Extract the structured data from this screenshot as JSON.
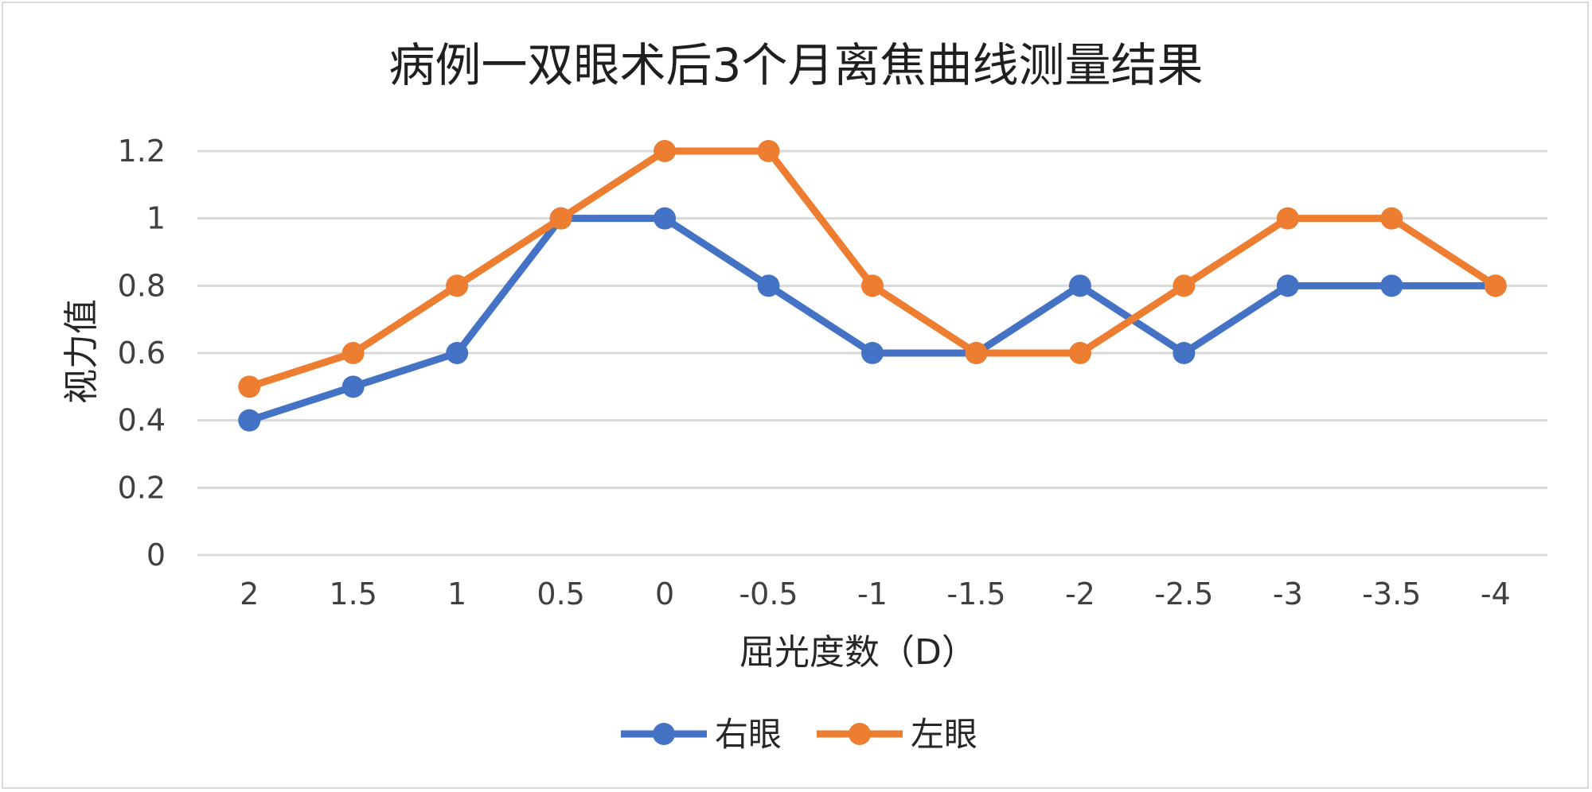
{
  "chart_data": {
    "type": "line",
    "title": "病例一双眼术后3个月离焦曲线测量结果",
    "xlabel": "屈光度数（D）",
    "ylabel": "视力值",
    "categories": [
      "2",
      "1.5",
      "1",
      "0.5",
      "0",
      "-0.5",
      "-1",
      "-1.5",
      "-2",
      "-2.5",
      "-3",
      "-3.5",
      "-4"
    ],
    "y_ticks": [
      "0",
      "0.2",
      "0.4",
      "0.6",
      "0.8",
      "1",
      "1.2"
    ],
    "ylim": [
      0,
      1.2
    ],
    "grid": true,
    "legend_position": "bottom",
    "series": [
      {
        "name": "右眼",
        "color": "#4472C4",
        "values": [
          0.4,
          0.5,
          0.6,
          1.0,
          1.0,
          0.8,
          0.6,
          0.6,
          0.8,
          0.6,
          0.8,
          0.8,
          0.8
        ]
      },
      {
        "name": "左眼",
        "color": "#ED7D31",
        "values": [
          0.5,
          0.6,
          0.8,
          1.0,
          1.2,
          1.2,
          0.8,
          0.6,
          0.6,
          0.8,
          1.0,
          1.0,
          0.8
        ]
      }
    ]
  }
}
